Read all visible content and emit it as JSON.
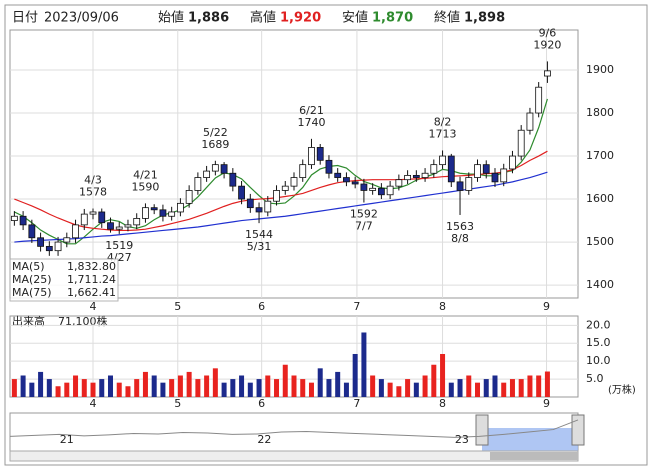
{
  "chart_data": {
    "type": "candlestick",
    "header": {
      "date_label": "日付",
      "date": "2023/09/06",
      "open_label": "始値",
      "open": "1,886",
      "high_label": "高値",
      "high": "1,920",
      "low_label": "安値",
      "low": "1,870",
      "close_label": "終値",
      "close": "1,898"
    },
    "xlim": [
      -0.5,
      64.5
    ],
    "xticks": [
      {
        "value": 9,
        "label": "4"
      },
      {
        "value": 18.7,
        "label": "5"
      },
      {
        "value": 28.3,
        "label": "6"
      },
      {
        "value": 39.2,
        "label": "7"
      },
      {
        "value": 49,
        "label": "8"
      },
      {
        "value": 60.9,
        "label": "9"
      }
    ],
    "ylim": [
      1370,
      1993
    ],
    "yticks": [
      1400,
      1500,
      1600,
      1700,
      1800,
      1900
    ],
    "grid": true,
    "up_color": "#ffffff",
    "down_color": "#1c2a8c",
    "volume_up_color": "#e8231f",
    "volume_down_color": "#1c2a8c",
    "open": [
      1550,
      1560,
      1540,
      1510,
      1490,
      1480,
      1500,
      1510,
      1540,
      1565,
      1570,
      1545,
      1530,
      1535,
      1540,
      1555,
      1580,
      1575,
      1560,
      1570,
      1590,
      1620,
      1650,
      1665,
      1680,
      1660,
      1630,
      1600,
      1580,
      1570,
      1595,
      1620,
      1630,
      1650,
      1680,
      1720,
      1690,
      1660,
      1650,
      1640,
      1635,
      1620,
      1625,
      1610,
      1630,
      1645,
      1655,
      1650,
      1660,
      1680,
      1700,
      1640,
      1620,
      1650,
      1680,
      1660,
      1640,
      1670,
      1700,
      1760,
      1800,
      1886
    ],
    "high": [
      1572,
      1572,
      1552,
      1522,
      1502,
      1512,
      1522,
      1552,
      1577,
      1578,
      1578,
      1557,
      1547,
      1552,
      1567,
      1590,
      1588,
      1587,
      1582,
      1602,
      1632,
      1662,
      1677,
      1689,
      1686,
      1672,
      1642,
      1612,
      1592,
      1607,
      1632,
      1642,
      1662,
      1692,
      1740,
      1728,
      1702,
      1672,
      1662,
      1652,
      1647,
      1637,
      1637,
      1642,
      1657,
      1667,
      1667,
      1672,
      1692,
      1713,
      1705,
      1652,
      1662,
      1692,
      1690,
      1672,
      1682,
      1712,
      1772,
      1812,
      1872,
      1920
    ],
    "low": [
      1538,
      1528,
      1498,
      1478,
      1468,
      1468,
      1488,
      1498,
      1528,
      1553,
      1533,
      1522,
      1519,
      1525,
      1530,
      1545,
      1565,
      1548,
      1550,
      1560,
      1580,
      1610,
      1640,
      1655,
      1648,
      1618,
      1588,
      1568,
      1544,
      1560,
      1585,
      1610,
      1620,
      1640,
      1670,
      1680,
      1648,
      1640,
      1630,
      1625,
      1592,
      1610,
      1600,
      1600,
      1620,
      1635,
      1640,
      1640,
      1650,
      1670,
      1628,
      1563,
      1610,
      1640,
      1648,
      1628,
      1630,
      1660,
      1690,
      1750,
      1790,
      1870
    ],
    "close": [
      1560,
      1540,
      1510,
      1490,
      1480,
      1500,
      1510,
      1540,
      1565,
      1570,
      1545,
      1530,
      1535,
      1540,
      1555,
      1580,
      1575,
      1560,
      1570,
      1590,
      1620,
      1650,
      1665,
      1680,
      1660,
      1630,
      1600,
      1580,
      1570,
      1595,
      1620,
      1630,
      1650,
      1680,
      1720,
      1690,
      1660,
      1650,
      1640,
      1635,
      1620,
      1625,
      1610,
      1630,
      1645,
      1655,
      1650,
      1660,
      1680,
      1700,
      1640,
      1620,
      1650,
      1680,
      1660,
      1640,
      1670,
      1700,
      1760,
      1800,
      1860,
      1898
    ],
    "series": [
      {
        "name": "MA(5)",
        "value_label": "1,832.80",
        "color": "#2e8b2e",
        "values": [
          1570,
          1560,
          1545,
          1528,
          1516,
          1506,
          1496,
          1496,
          1512,
          1530,
          1546,
          1552,
          1548,
          1536,
          1532,
          1538,
          1552,
          1563,
          1568,
          1575,
          1587,
          1605,
          1627,
          1649,
          1661,
          1657,
          1647,
          1627,
          1608,
          1591,
          1589,
          1591,
          1607,
          1627,
          1656,
          1670,
          1676,
          1678,
          1672,
          1655,
          1641,
          1634,
          1626,
          1624,
          1626,
          1633,
          1644,
          1651,
          1658,
          1669,
          1666,
          1660,
          1658,
          1658,
          1654,
          1654,
          1662,
          1666,
          1686,
          1714,
          1766,
          1832.8
        ]
      },
      {
        "name": "MA(25)",
        "value_label": "1,711.24",
        "color": "#e02020",
        "values": [
          1600,
          1592,
          1584,
          1575,
          1565,
          1556,
          1548,
          1540,
          1535,
          1532,
          1530,
          1528,
          1527,
          1527,
          1528,
          1530,
          1534,
          1538,
          1543,
          1548,
          1553,
          1560,
          1567,
          1575,
          1583,
          1590,
          1595,
          1598,
          1600,
          1601,
          1603,
          1606,
          1609,
          1613,
          1620,
          1627,
          1633,
          1638,
          1641,
          1643,
          1644,
          1645,
          1645,
          1645,
          1645,
          1646,
          1647,
          1648,
          1650,
          1652,
          1653,
          1654,
          1655,
          1657,
          1659,
          1660,
          1663,
          1668,
          1678,
          1690,
          1700,
          1711.24
        ]
      },
      {
        "name": "MA(75)",
        "value_label": "1,662.41",
        "color": "#2030d0",
        "values": [
          1500,
          1502,
          1503,
          1504,
          1505,
          1506,
          1507,
          1508,
          1510,
          1512,
          1514,
          1515,
          1517,
          1519,
          1521,
          1523,
          1525,
          1527,
          1529,
          1531,
          1533,
          1535,
          1538,
          1541,
          1544,
          1547,
          1550,
          1552,
          1554,
          1556,
          1558,
          1560,
          1563,
          1566,
          1569,
          1572,
          1575,
          1578,
          1581,
          1584,
          1587,
          1590,
          1593,
          1596,
          1599,
          1602,
          1605,
          1608,
          1611,
          1614,
          1617,
          1620,
          1623,
          1626,
          1629,
          1632,
          1636,
          1640,
          1645,
          1650,
          1656,
          1662.41
        ]
      }
    ],
    "annotations": [
      {
        "date": "4/3",
        "value": 1578,
        "position": "above"
      },
      {
        "date": "4/21",
        "value": 1590,
        "position": "above"
      },
      {
        "date": "5/22",
        "value": 1689,
        "position": "above"
      },
      {
        "date": "6/21",
        "value": 1740,
        "position": "above"
      },
      {
        "date": "8/2",
        "value": 1713,
        "position": "above"
      },
      {
        "date": "9/6",
        "value": 1920,
        "position": "above"
      },
      {
        "date": "4/27",
        "value": 1519,
        "position": "below"
      },
      {
        "date": "5/31",
        "value": 1544,
        "position": "below"
      },
      {
        "date": "7/7",
        "value": 1592,
        "position": "below"
      },
      {
        "date": "8/8",
        "value": 1563,
        "position": "below"
      }
    ],
    "volume": {
      "label": "出来高",
      "current": "71,100株",
      "unit": "(万株)",
      "ylim": [
        0,
        22.6
      ],
      "yticks": [
        {
          "value": 5,
          "label": "5.0"
        },
        {
          "value": 10,
          "label": "10.0"
        },
        {
          "value": 15,
          "label": "15.0"
        },
        {
          "value": 20,
          "label": "20.0"
        }
      ],
      "values": [
        5,
        6,
        4,
        7,
        5,
        3,
        4,
        6,
        5,
        4,
        5,
        6,
        4,
        3,
        5,
        7,
        6,
        4,
        5,
        6,
        7,
        5,
        6,
        8,
        4,
        5,
        6,
        4,
        5,
        6,
        5,
        9,
        6,
        5,
        4,
        8,
        5,
        7,
        4,
        12,
        18,
        6,
        5,
        4,
        3,
        5,
        4,
        6,
        9,
        12,
        4,
        5,
        6,
        4,
        5,
        6,
        4,
        5,
        5,
        6,
        6,
        7.11
      ]
    },
    "navigator": {
      "color": "#888888",
      "ylim": [
        1300,
        2000
      ],
      "values": [
        1560,
        1580,
        1600,
        1570,
        1590,
        1620,
        1610,
        1640,
        1630,
        1600,
        1610,
        1650,
        1660,
        1640,
        1620,
        1600,
        1580,
        1560,
        1540,
        1560,
        1600,
        1650,
        1700,
        1898
      ],
      "xticks": [
        {
          "value": 2.3,
          "label": "21"
        },
        {
          "value": 10.3,
          "label": "22"
        },
        {
          "value": 18.3,
          "label": "23"
        }
      ]
    }
  }
}
